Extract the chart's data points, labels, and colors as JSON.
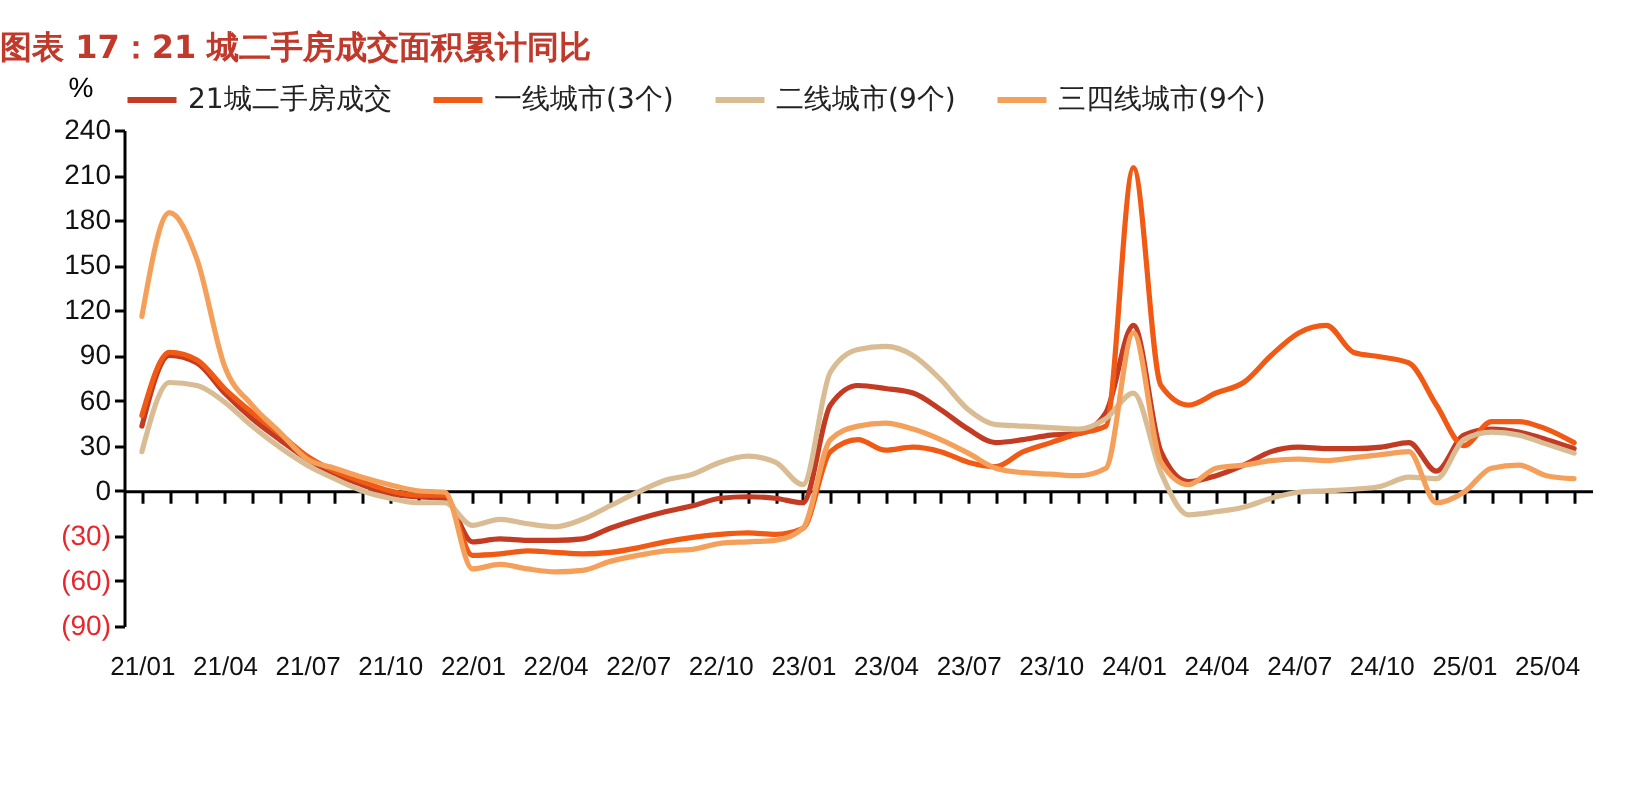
{
  "chart_data": {
    "type": "line",
    "title": "图表 17：21 城二手房成交面积累计同比",
    "ylabel": "%",
    "categories": [
      "21/01",
      null,
      null,
      "21/04",
      null,
      null,
      "21/07",
      null,
      null,
      "21/10",
      null,
      null,
      "22/01",
      null,
      null,
      "22/04",
      null,
      null,
      "22/07",
      null,
      null,
      "22/10",
      null,
      null,
      "23/01",
      null,
      null,
      "23/04",
      null,
      null,
      "23/07",
      null,
      null,
      "23/10",
      null,
      null,
      "24/01",
      null,
      null,
      "24/04",
      null,
      null,
      "24/07",
      null,
      null,
      "24/10",
      null,
      null,
      "25/01",
      null,
      null,
      "25/04",
      null
    ],
    "series": [
      {
        "name": "21城二手房成交",
        "color": "#c23b22",
        "values": [
          43,
          90,
          85,
          65,
          48,
          34,
          21,
          11,
          4,
          -2,
          -4,
          -5,
          -34,
          -32,
          -33,
          -33,
          -32,
          -25,
          -19,
          -14,
          -10,
          -5,
          -4,
          -5,
          -8,
          57,
          70,
          68,
          65,
          54,
          41,
          32,
          34,
          37,
          38,
          52,
          110,
          26,
          6,
          10,
          17,
          26,
          29,
          28,
          28,
          29,
          32,
          13,
          37,
          41,
          39,
          34,
          28
        ]
      },
      {
        "name": "一线城市(3个)",
        "color": "#f05a14",
        "values": [
          50,
          92,
          87,
          68,
          52,
          38,
          23,
          13,
          6,
          0,
          -3,
          -3,
          -43,
          -42,
          -40,
          -41,
          -42,
          -41,
          -38,
          -34,
          -31,
          -29,
          -28,
          -29,
          -25,
          26,
          34,
          27,
          29,
          26,
          19,
          16,
          26,
          32,
          38,
          43,
          215,
          70,
          57,
          65,
          72,
          90,
          105,
          110,
          92,
          89,
          85,
          57,
          30,
          46,
          46,
          41,
          32
        ]
      },
      {
        "name": "二线城市(9个)",
        "color": "#d9bc94",
        "values": [
          26,
          72,
          70,
          59,
          43,
          29,
          17,
          8,
          0,
          -5,
          -8,
          -8,
          -23,
          -19,
          -22,
          -24,
          -19,
          -10,
          -1,
          7,
          11,
          19,
          23,
          19,
          4,
          79,
          94,
          96,
          90,
          74,
          54,
          44,
          43,
          42,
          41,
          48,
          65,
          12,
          -16,
          -14,
          -11,
          -5,
          -1,
          0,
          1,
          3,
          9,
          8,
          34,
          39,
          37,
          31,
          25
        ]
      },
      {
        "name": "三四线城市(9个)",
        "color": "#f5a05a",
        "values": [
          116,
          185,
          154,
          83,
          57,
          39,
          21,
          15,
          9,
          4,
          0,
          -1,
          -52,
          -49,
          -52,
          -54,
          -53,
          -47,
          -43,
          -40,
          -39,
          -35,
          -34,
          -33,
          -25,
          34,
          43,
          45,
          41,
          34,
          25,
          15,
          12,
          11,
          10,
          15,
          105,
          19,
          4,
          15,
          17,
          20,
          21,
          20,
          22,
          24,
          26,
          -8,
          -1,
          15,
          17,
          10,
          8
        ]
      }
    ],
    "ylim": [
      -90,
      240
    ],
    "yticks": [
      {
        "value": -90,
        "label": "(90)"
      },
      {
        "value": -60,
        "label": "(60)"
      },
      {
        "value": -30,
        "label": "(30)"
      },
      0,
      30,
      60,
      90,
      120,
      150,
      180,
      210,
      240
    ],
    "legend": "top",
    "line_style": "solid",
    "marker": "none"
  }
}
